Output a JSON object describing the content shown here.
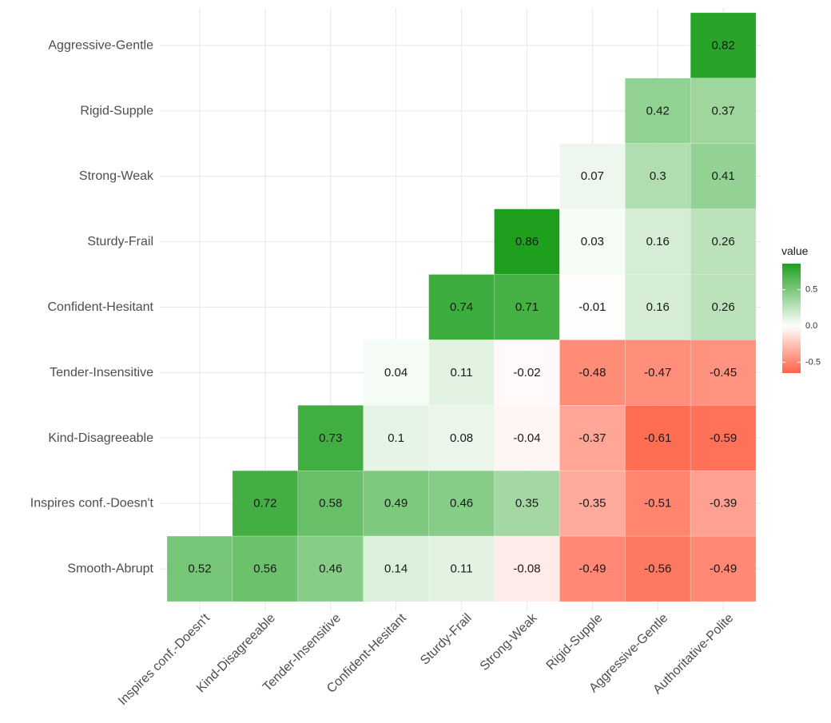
{
  "chart_data": {
    "type": "heatmap",
    "title": "",
    "xlabel": "",
    "ylabel": "",
    "x_categories": [
      "Inspires conf.-Doesn't",
      "Kind-Disagreeable",
      "Tender-Insensitive",
      "Confident-Hesitant",
      "Sturdy-Frail",
      "Strong-Weak",
      "Rigid-Supple",
      "Aggressive-Gentle",
      "Authoritative-Polite"
    ],
    "y_categories": [
      "Smooth-Abrupt",
      "Inspires conf.-Doesn't",
      "Kind-Disagreeable",
      "Tender-Insensitive",
      "Confident-Hesitant",
      "Sturdy-Frail",
      "Strong-Weak",
      "Rigid-Supple",
      "Aggressive-Gentle"
    ],
    "cells": [
      {
        "x": "Authoritative-Polite",
        "y": "Aggressive-Gentle",
        "value": 0.82,
        "label": "0.82"
      },
      {
        "x": "Aggressive-Gentle",
        "y": "Rigid-Supple",
        "value": 0.42,
        "label": "0.42"
      },
      {
        "x": "Authoritative-Polite",
        "y": "Rigid-Supple",
        "value": 0.37,
        "label": "0.37"
      },
      {
        "x": "Rigid-Supple",
        "y": "Strong-Weak",
        "value": 0.07,
        "label": "0.07"
      },
      {
        "x": "Aggressive-Gentle",
        "y": "Strong-Weak",
        "value": 0.3,
        "label": "0.3"
      },
      {
        "x": "Authoritative-Polite",
        "y": "Strong-Weak",
        "value": 0.41,
        "label": "0.41"
      },
      {
        "x": "Strong-Weak",
        "y": "Sturdy-Frail",
        "value": 0.86,
        "label": "0.86"
      },
      {
        "x": "Rigid-Supple",
        "y": "Sturdy-Frail",
        "value": 0.03,
        "label": "0.03"
      },
      {
        "x": "Aggressive-Gentle",
        "y": "Sturdy-Frail",
        "value": 0.16,
        "label": "0.16"
      },
      {
        "x": "Authoritative-Polite",
        "y": "Sturdy-Frail",
        "value": 0.26,
        "label": "0.26"
      },
      {
        "x": "Sturdy-Frail",
        "y": "Confident-Hesitant",
        "value": 0.74,
        "label": "0.74"
      },
      {
        "x": "Strong-Weak",
        "y": "Confident-Hesitant",
        "value": 0.71,
        "label": "0.71"
      },
      {
        "x": "Rigid-Supple",
        "y": "Confident-Hesitant",
        "value": -0.01,
        "label": "-0.01"
      },
      {
        "x": "Aggressive-Gentle",
        "y": "Confident-Hesitant",
        "value": 0.16,
        "label": "0.16"
      },
      {
        "x": "Authoritative-Polite",
        "y": "Confident-Hesitant",
        "value": 0.26,
        "label": "0.26"
      },
      {
        "x": "Confident-Hesitant",
        "y": "Tender-Insensitive",
        "value": 0.04,
        "label": "0.04"
      },
      {
        "x": "Sturdy-Frail",
        "y": "Tender-Insensitive",
        "value": 0.11,
        "label": "0.11"
      },
      {
        "x": "Strong-Weak",
        "y": "Tender-Insensitive",
        "value": -0.02,
        "label": "-0.02"
      },
      {
        "x": "Rigid-Supple",
        "y": "Tender-Insensitive",
        "value": -0.48,
        "label": "-0.48"
      },
      {
        "x": "Aggressive-Gentle",
        "y": "Tender-Insensitive",
        "value": -0.47,
        "label": "-0.47"
      },
      {
        "x": "Authoritative-Polite",
        "y": "Tender-Insensitive",
        "value": -0.45,
        "label": "-0.45"
      },
      {
        "x": "Tender-Insensitive",
        "y": "Kind-Disagreeable",
        "value": 0.73,
        "label": "0.73"
      },
      {
        "x": "Confident-Hesitant",
        "y": "Kind-Disagreeable",
        "value": 0.1,
        "label": "0.1"
      },
      {
        "x": "Sturdy-Frail",
        "y": "Kind-Disagreeable",
        "value": 0.08,
        "label": "0.08"
      },
      {
        "x": "Strong-Weak",
        "y": "Kind-Disagreeable",
        "value": -0.04,
        "label": "-0.04"
      },
      {
        "x": "Rigid-Supple",
        "y": "Kind-Disagreeable",
        "value": -0.37,
        "label": "-0.37"
      },
      {
        "x": "Aggressive-Gentle",
        "y": "Kind-Disagreeable",
        "value": -0.61,
        "label": "-0.61"
      },
      {
        "x": "Authoritative-Polite",
        "y": "Kind-Disagreeable",
        "value": -0.59,
        "label": "-0.59"
      },
      {
        "x": "Kind-Disagreeable",
        "y": "Inspires conf.-Doesn't",
        "value": 0.72,
        "label": "0.72"
      },
      {
        "x": "Tender-Insensitive",
        "y": "Inspires conf.-Doesn't",
        "value": 0.58,
        "label": "0.58"
      },
      {
        "x": "Confident-Hesitant",
        "y": "Inspires conf.-Doesn't",
        "value": 0.49,
        "label": "0.49"
      },
      {
        "x": "Sturdy-Frail",
        "y": "Inspires conf.-Doesn't",
        "value": 0.46,
        "label": "0.46"
      },
      {
        "x": "Strong-Weak",
        "y": "Inspires conf.-Doesn't",
        "value": 0.35,
        "label": "0.35"
      },
      {
        "x": "Rigid-Supple",
        "y": "Inspires conf.-Doesn't",
        "value": -0.35,
        "label": "-0.35"
      },
      {
        "x": "Aggressive-Gentle",
        "y": "Inspires conf.-Doesn't",
        "value": -0.51,
        "label": "-0.51"
      },
      {
        "x": "Authoritative-Polite",
        "y": "Inspires conf.-Doesn't",
        "value": -0.39,
        "label": "-0.39"
      },
      {
        "x": "Inspires conf.-Doesn't",
        "y": "Smooth-Abrupt",
        "value": 0.52,
        "label": "0.52"
      },
      {
        "x": "Kind-Disagreeable",
        "y": "Smooth-Abrupt",
        "value": 0.56,
        "label": "0.56"
      },
      {
        "x": "Tender-Insensitive",
        "y": "Smooth-Abrupt",
        "value": 0.46,
        "label": "0.46"
      },
      {
        "x": "Confident-Hesitant",
        "y": "Smooth-Abrupt",
        "value": 0.14,
        "label": "0.14"
      },
      {
        "x": "Sturdy-Frail",
        "y": "Smooth-Abrupt",
        "value": 0.11,
        "label": "0.11"
      },
      {
        "x": "Strong-Weak",
        "y": "Smooth-Abrupt",
        "value": -0.08,
        "label": "-0.08"
      },
      {
        "x": "Rigid-Supple",
        "y": "Smooth-Abrupt",
        "value": -0.49,
        "label": "-0.49"
      },
      {
        "x": "Aggressive-Gentle",
        "y": "Smooth-Abrupt",
        "value": -0.56,
        "label": "-0.56"
      },
      {
        "x": "Authoritative-Polite",
        "y": "Smooth-Abrupt",
        "value": -0.49,
        "label": "-0.49"
      }
    ],
    "color_scale": {
      "low": "#ff6347",
      "mid": "#ffffff",
      "high": "#1ea01e",
      "domain": [
        -0.65,
        0.86
      ],
      "midpoint": 0
    },
    "legend": {
      "title": "value",
      "placement": "right",
      "ticks": [
        {
          "value": 0.5,
          "label": "0.5"
        },
        {
          "value": 0.0,
          "label": "0.0"
        },
        {
          "value": -0.5,
          "label": "-0.5"
        }
      ]
    },
    "grid": true
  }
}
